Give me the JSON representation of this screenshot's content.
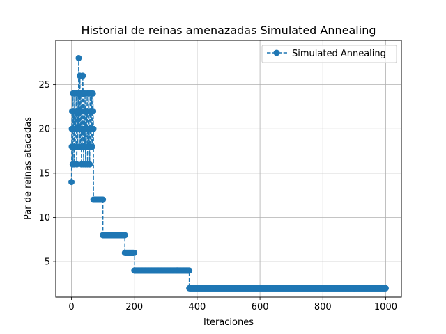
{
  "chart_data": {
    "type": "line",
    "title": "Historial de reinas amenazadas Simulated Annealing",
    "xlabel": "Iteraciones",
    "ylabel": "Par de reinas atacadas",
    "xlim": [
      -50,
      1050
    ],
    "ylim": [
      1,
      30
    ],
    "xticks": [
      0,
      200,
      400,
      600,
      800,
      1000
    ],
    "yticks": [
      5,
      10,
      15,
      20,
      25
    ],
    "grid": true,
    "legend_position": "top-right",
    "series": [
      {
        "name": "Simulated Annealing",
        "color": "#1f77b4",
        "line_style": "dashed",
        "marker": "circle",
        "segments": [
          {
            "x_start": 0,
            "x_end": 1,
            "values": [
              14,
              18
            ]
          },
          {
            "x_start": 1,
            "x_end": 70,
            "values": [
              20,
              22,
              18,
              16,
              24,
              20,
              22,
              16,
              18,
              24,
              20,
              18,
              22,
              20,
              24,
              18,
              16,
              20,
              22,
              18,
              24,
              20,
              28,
              24,
              18,
              20,
              26,
              22,
              18,
              24,
              20,
              16,
              22,
              18,
              20,
              26,
              24,
              18,
              16,
              22,
              20,
              18,
              24,
              22,
              16,
              20,
              18,
              22,
              20,
              24,
              16,
              20,
              18,
              22,
              24,
              20,
              18,
              16,
              22,
              24,
              20,
              18,
              22,
              24,
              20,
              18,
              20,
              24,
              22,
              20
            ]
          },
          {
            "x_start": 70,
            "x_end": 100,
            "values": [
              12
            ]
          },
          {
            "x_start": 100,
            "x_end": 170,
            "values": [
              8
            ]
          },
          {
            "x_start": 170,
            "x_end": 200,
            "values": [
              6
            ]
          },
          {
            "x_start": 200,
            "x_end": 375,
            "values": [
              4
            ]
          },
          {
            "x_start": 375,
            "x_end": 1000,
            "values": [
              2
            ]
          }
        ]
      }
    ]
  }
}
